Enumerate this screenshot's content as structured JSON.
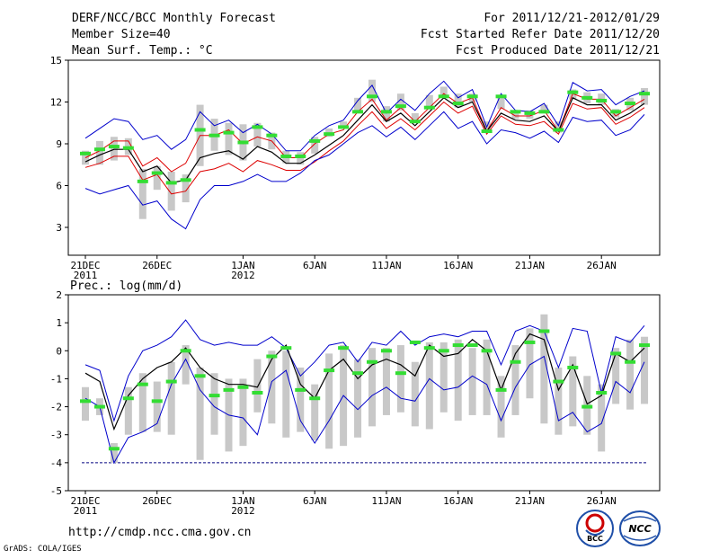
{
  "header": {
    "title": "DERF/NCC/BCC Monthly Forecast",
    "member_size": "Member Size=40",
    "variable": "Mean Surf. Temp.: °C",
    "period": "For 2011/12/21-2012/01/29",
    "started": "Fcst Started Refer Date 2011/12/20",
    "produced": "Fcst Produced Date 2011/12/21"
  },
  "footer": {
    "url": "http://cmdp.ncc.cma.gov.cn",
    "credit": "GrADS: COLA/IGES",
    "logo_bcc": "BCC",
    "logo_ncc": "NCC"
  },
  "colors": {
    "envelope": "#0000cc",
    "spread": "#dd0000",
    "mean": "#000000",
    "bar": "#c8c8c8",
    "marker": "#33dd33",
    "floor": "#000080"
  },
  "chart_data": [
    {
      "type": "line",
      "title": "",
      "ylabel": "Mean Surf. Temp.: °C",
      "ylim": [
        1,
        15
      ],
      "yticks": [
        3,
        6,
        9,
        12,
        15
      ],
      "x": [
        1,
        2,
        3,
        4,
        5,
        6,
        7,
        8,
        9,
        10,
        11,
        12,
        13,
        14,
        15,
        16,
        17,
        18,
        19,
        20,
        21,
        22,
        23,
        24,
        25,
        26,
        27,
        28,
        29,
        30,
        31,
        32,
        33,
        34,
        35,
        36,
        37,
        38,
        39,
        40
      ],
      "xticks": [
        {
          "x": 1,
          "label": "21DEC",
          "sub": "2011"
        },
        {
          "x": 6,
          "label": "26DEC",
          "sub": ""
        },
        {
          "x": 12,
          "label": "1JAN",
          "sub": "2012"
        },
        {
          "x": 17,
          "label": "6JAN",
          "sub": ""
        },
        {
          "x": 22,
          "label": "11JAN",
          "sub": ""
        },
        {
          "x": 27,
          "label": "16JAN",
          "sub": ""
        },
        {
          "x": 32,
          "label": "21JAN",
          "sub": ""
        },
        {
          "x": 37,
          "label": "26JAN",
          "sub": ""
        }
      ],
      "series": [
        {
          "name": "max",
          "values": [
            9.4,
            10.1,
            10.8,
            10.6,
            9.3,
            9.6,
            8.6,
            9.3,
            11.3,
            10.3,
            10.7,
            9.8,
            10.4,
            9.7,
            8.5,
            8.5,
            9.6,
            10.3,
            10.7,
            12.1,
            13.2,
            11.2,
            12.2,
            11.4,
            12.6,
            13.5,
            12.3,
            12.9,
            10.2,
            12.6,
            11.4,
            11.3,
            11.9,
            10.3,
            13.4,
            12.8,
            12.9,
            11.8,
            12.4,
            12.8
          ]
        },
        {
          "name": "upper",
          "values": [
            8.0,
            8.5,
            9.2,
            9.2,
            7.4,
            8.0,
            7.0,
            7.6,
            9.6,
            9.6,
            10.0,
            9.0,
            9.5,
            9.2,
            8.0,
            8.0,
            9.0,
            9.7,
            10.0,
            11.3,
            12.2,
            10.7,
            11.6,
            10.6,
            11.6,
            12.6,
            11.9,
            12.3,
            9.9,
            11.6,
            11.0,
            11.0,
            11.4,
            9.9,
            12.6,
            12.2,
            12.2,
            11.0,
            11.6,
            12.2
          ]
        },
        {
          "name": "mean",
          "values": [
            7.7,
            8.2,
            8.6,
            8.6,
            7.0,
            7.4,
            6.2,
            6.4,
            8.0,
            8.3,
            8.5,
            7.9,
            8.8,
            8.4,
            7.6,
            7.6,
            8.2,
            8.9,
            9.6,
            10.7,
            11.8,
            10.6,
            11.2,
            10.3,
            11.3,
            12.3,
            11.6,
            12.0,
            9.9,
            11.2,
            10.7,
            10.6,
            11.0,
            9.9,
            12.3,
            11.8,
            11.8,
            10.7,
            11.2,
            11.9
          ]
        },
        {
          "name": "lower",
          "values": [
            7.3,
            7.6,
            8.1,
            8.1,
            6.4,
            6.8,
            5.4,
            5.6,
            7.0,
            7.2,
            7.6,
            7.0,
            7.8,
            7.5,
            7.1,
            7.1,
            7.7,
            8.5,
            9.2,
            10.3,
            11.3,
            10.1,
            10.8,
            10.0,
            11.0,
            12.0,
            11.2,
            11.7,
            9.7,
            11.0,
            10.4,
            10.3,
            10.6,
            9.7,
            11.9,
            11.5,
            11.6,
            10.4,
            10.9,
            11.6
          ]
        },
        {
          "name": "min",
          "values": [
            5.8,
            5.4,
            5.7,
            6.0,
            4.6,
            4.9,
            3.6,
            2.9,
            5.0,
            6.0,
            6.0,
            6.3,
            6.8,
            6.3,
            6.3,
            6.9,
            7.8,
            8.2,
            9.0,
            9.8,
            10.3,
            9.5,
            10.2,
            9.3,
            10.3,
            11.3,
            10.1,
            10.6,
            9.0,
            10.0,
            9.8,
            9.4,
            9.9,
            9.1,
            10.9,
            10.6,
            10.7,
            9.6,
            10.0,
            11.1
          ]
        }
      ],
      "bars": {
        "low": [
          7.5,
          7.5,
          7.8,
          8.2,
          3.6,
          5.7,
          4.2,
          4.8,
          7.4,
          8.5,
          8.2,
          7.8,
          8.8,
          8.6,
          7.6,
          7.5,
          8.3,
          9.5,
          10.1,
          11.3,
          12.0,
          10.6,
          11.4,
          10.6,
          11.5,
          12.3,
          11.6,
          12.0,
          9.8,
          11.5,
          10.8,
          10.8,
          11.2,
          9.8,
          12.2,
          11.9,
          11.8,
          10.9,
          11.4,
          11.8
        ],
        "high": [
          8.5,
          9.2,
          9.5,
          9.4,
          7.2,
          7.4,
          7.0,
          6.8,
          11.8,
          10.8,
          10.5,
          10.4,
          10.5,
          9.8,
          8.5,
          8.4,
          9.5,
          10.1,
          10.6,
          12.3,
          13.6,
          11.7,
          12.6,
          11.2,
          12.5,
          13.1,
          12.6,
          12.6,
          10.6,
          12.4,
          11.4,
          11.4,
          11.8,
          10.6,
          12.9,
          12.7,
          12.6,
          11.5,
          12.3,
          13.0
        ]
      },
      "markers": [
        8.3,
        8.6,
        8.8,
        8.7,
        6.3,
        6.9,
        6.2,
        6.4,
        10.0,
        9.6,
        9.8,
        9.1,
        10.2,
        9.6,
        8.1,
        8.1,
        9.2,
        9.7,
        10.2,
        11.3,
        12.4,
        11.3,
        11.7,
        10.6,
        11.6,
        12.4,
        11.9,
        12.4,
        9.9,
        12.4,
        11.3,
        11.2,
        11.3,
        10.0,
        12.7,
        12.3,
        12.1,
        11.3,
        11.9,
        12.6
      ]
    },
    {
      "type": "line",
      "title": "",
      "ylabel": "Prec.: log(mm/d)",
      "ylim": [
        -5,
        2
      ],
      "yticks": [
        -5,
        -4,
        -3,
        -2,
        -1,
        0,
        1,
        2
      ],
      "floor": -4,
      "x": [
        1,
        2,
        3,
        4,
        5,
        6,
        7,
        8,
        9,
        10,
        11,
        12,
        13,
        14,
        15,
        16,
        17,
        18,
        19,
        20,
        21,
        22,
        23,
        24,
        25,
        26,
        27,
        28,
        29,
        30,
        31,
        32,
        33,
        34,
        35,
        36,
        37,
        38,
        39,
        40
      ],
      "xticks": [
        {
          "x": 1,
          "label": "21DEC",
          "sub": "2011"
        },
        {
          "x": 6,
          "label": "26DEC",
          "sub": ""
        },
        {
          "x": 12,
          "label": "1JAN",
          "sub": "2012"
        },
        {
          "x": 17,
          "label": "6JAN",
          "sub": ""
        },
        {
          "x": 22,
          "label": "11JAN",
          "sub": ""
        },
        {
          "x": 27,
          "label": "16JAN",
          "sub": ""
        },
        {
          "x": 32,
          "label": "21JAN",
          "sub": ""
        },
        {
          "x": 37,
          "label": "26JAN",
          "sub": ""
        }
      ],
      "series": [
        {
          "name": "max",
          "values": [
            -0.5,
            -0.7,
            -2.5,
            -0.9,
            0.0,
            0.2,
            0.5,
            1.1,
            0.4,
            0.2,
            0.3,
            0.2,
            0.2,
            0.5,
            0.1,
            -0.9,
            -0.4,
            0.2,
            0.3,
            -0.4,
            0.3,
            0.2,
            0.7,
            0.2,
            0.5,
            0.6,
            0.5,
            0.7,
            0.7,
            -0.5,
            0.7,
            0.9,
            0.7,
            -0.6,
            0.8,
            0.7,
            -1.5,
            0.5,
            0.3,
            0.9
          ]
        },
        {
          "name": "mean",
          "values": [
            -0.8,
            -1.1,
            -2.8,
            -1.6,
            -1.0,
            -0.6,
            -0.4,
            0.1,
            -0.6,
            -1.0,
            -1.2,
            -1.2,
            -1.3,
            -0.3,
            0.2,
            -1.2,
            -1.7,
            -0.7,
            -0.3,
            -1.0,
            -0.5,
            -0.3,
            -0.5,
            -0.9,
            0.2,
            -0.2,
            -0.1,
            0.4,
            0.0,
            -1.4,
            -0.1,
            0.6,
            0.4,
            -1.4,
            -0.5,
            -1.9,
            -1.6,
            -0.1,
            -0.4,
            0.1
          ]
        },
        {
          "name": "min",
          "values": [
            -1.7,
            -2.0,
            -4.0,
            -3.1,
            -2.9,
            -2.6,
            -1.2,
            -0.3,
            -1.4,
            -2.0,
            -2.3,
            -2.4,
            -3.0,
            -1.1,
            -0.7,
            -2.5,
            -3.3,
            -2.5,
            -1.6,
            -2.1,
            -1.6,
            -1.3,
            -1.7,
            -1.8,
            -1.0,
            -1.4,
            -1.3,
            -0.9,
            -1.2,
            -2.5,
            -1.3,
            -0.5,
            -0.2,
            -2.5,
            -2.2,
            -2.9,
            -2.6,
            -1.1,
            -1.5,
            -0.4
          ]
        }
      ],
      "bars": {
        "low": [
          -2.5,
          -2.3,
          -4.0,
          -3.0,
          -2.9,
          -2.9,
          -3.0,
          -1.2,
          -3.9,
          -3.0,
          -3.6,
          -3.4,
          -2.2,
          -2.6,
          -3.1,
          -2.9,
          -3.2,
          -3.5,
          -3.4,
          -3.1,
          -2.7,
          -2.3,
          -2.2,
          -2.7,
          -2.8,
          -2.2,
          -2.5,
          -2.3,
          -2.3,
          -3.1,
          -2.3,
          -1.7,
          -2.6,
          -3.0,
          -2.7,
          -3.0,
          -3.6,
          -1.9,
          -2.1,
          -1.9
        ],
        "high": [
          -1.3,
          -1.7,
          -3.3,
          -1.3,
          -0.8,
          -1.1,
          -0.4,
          0.2,
          -0.6,
          -0.8,
          -1.0,
          -1.0,
          -0.3,
          0.0,
          0.0,
          -0.6,
          -1.2,
          -0.1,
          0.2,
          -0.3,
          0.1,
          0.1,
          0.2,
          -0.4,
          0.3,
          0.3,
          0.4,
          0.1,
          0.4,
          -0.9,
          0.2,
          0.8,
          1.3,
          -0.6,
          -0.2,
          -0.9,
          -1.2,
          0.1,
          0.4,
          0.5
        ]
      },
      "markers": [
        -1.8,
        -2.0,
        -3.5,
        -1.7,
        -1.2,
        -1.8,
        -1.1,
        0.0,
        -0.9,
        -1.6,
        -1.4,
        -1.3,
        -1.5,
        -0.2,
        0.1,
        -1.4,
        -1.7,
        -0.7,
        0.1,
        -0.8,
        -0.4,
        0.0,
        -0.8,
        0.3,
        0.1,
        0.0,
        0.2,
        0.2,
        0.0,
        -1.4,
        -0.4,
        0.3,
        0.7,
        -1.1,
        -0.6,
        -2.0,
        -1.5,
        -0.1,
        -0.4,
        0.2
      ]
    }
  ]
}
